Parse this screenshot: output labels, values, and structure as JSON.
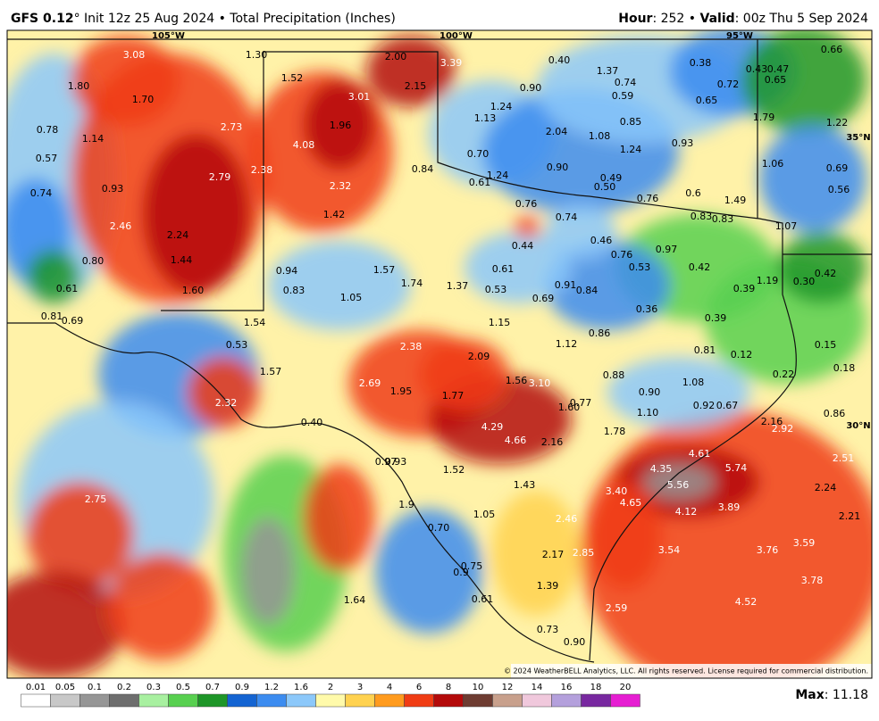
{
  "header": {
    "model": "GFS 0.12",
    "title": "° Init 12z 25 Aug 2024 • Total Precipitation (Inches)",
    "hour_label": "Hour",
    "hour": ": 252 • ",
    "valid_label": "Valid",
    "valid": ": 00z Thu 5 Sep 2024"
  },
  "axis_labels": [
    "105°W",
    "100°W",
    "95°W",
    "35°N",
    "30°N"
  ],
  "map_labels": [
    "3.08",
    "1.30",
    "1.80",
    "1.70",
    "1.52",
    "2.00",
    "3.39",
    "2.15",
    "3.01",
    "1.96",
    "0.78",
    "1.14",
    "2.73",
    "4.08",
    "0.57",
    "2.38",
    "2.79",
    "0.74",
    "0.93",
    "2.32",
    "1.42",
    "2.46",
    "2.24",
    "0.80",
    "1.44",
    "0.61",
    "1.60",
    "0.94",
    "0.83",
    "1.57",
    "1.74",
    "1.37",
    "1.05",
    "0.81",
    "0.69",
    "1.54",
    "0.53",
    "2.38",
    "1.57",
    "2.69",
    "1.95",
    "1.77",
    "2.09",
    "2.32",
    "1.56",
    "3.10",
    "0.40",
    "4.29",
    "4.66",
    "2.16",
    "1.60",
    "0.77",
    "0.97",
    "0.93",
    "1.52",
    "1.43",
    "2.75",
    "1.9",
    "1.05",
    "0.70",
    "2.46",
    "2.17",
    "2.85",
    "0.75",
    "0.9",
    "1.64",
    "0.61",
    "1.39",
    "0.73",
    "0.90",
    "2.59",
    "0.40",
    "1.37",
    "0.74",
    "0.59",
    "0.38",
    "0.72",
    "0.43",
    "0.47",
    "0.65",
    "0.66",
    "0.90",
    "1.24",
    "1.13",
    "0.65",
    "0.85",
    "2.04",
    "1.08",
    "1.79",
    "1.22",
    "0.93",
    "1.24",
    "0.70",
    "0.84",
    "0.90",
    "1.24",
    "0.61",
    "0.49",
    "0.50",
    "1.06",
    "0.69",
    "0.56",
    "0.76",
    "0.6",
    "1.49",
    "0.76",
    "0.74",
    "0.83",
    "0.83",
    "1.07",
    "0.44",
    "0.46",
    "0.97",
    "0.76",
    "0.53",
    "0.42",
    "0.61",
    "0.42",
    "1.19",
    "0.30",
    "0.91",
    "0.84",
    "0.53",
    "0.39",
    "0.69",
    "0.36",
    "1.15",
    "0.39",
    "0.86",
    "1.12",
    "0.15",
    "0.81",
    "0.12",
    "0.88",
    "0.22",
    "0.18",
    "1.08",
    "0.90",
    "0.92",
    "0.67",
    "1.10",
    "2.16",
    "2.92",
    "0.86",
    "1.78",
    "4.61",
    "5.74",
    "2.51",
    "4.35",
    "5.56",
    "2.24",
    "3.40",
    "4.65",
    "4.12",
    "3.89",
    "2.21",
    "3.54",
    "3.76",
    "3.59",
    "3.78",
    "4.52"
  ],
  "copyright": "© 2024 WeatherBELL Analytics, LLC. All rights reserved. License required for commercial distribution.",
  "colorbar": {
    "labels": [
      "0.01",
      "0.05",
      "0.1",
      "0.2",
      "0.3",
      "0.5",
      "0.7",
      "0.9",
      "1.2",
      "1.6",
      "2",
      "3",
      "4",
      "6",
      "8",
      "10",
      "12",
      "14",
      "16",
      "18",
      "20"
    ],
    "colors": [
      "#ffffff",
      "#c8c8c8",
      "#969696",
      "#6e6e6e",
      "#a8f0a0",
      "#58d050",
      "#1e9628",
      "#1464d2",
      "#3c8cf0",
      "#8cc8fa",
      "#fffaaa",
      "#ffd250",
      "#ff9b1e",
      "#f03c14",
      "#b40a0a",
      "#6e3c32",
      "#c8a08c",
      "#f0c8dc",
      "#b4a0dc",
      "#7828a0",
      "#e61ed2"
    ]
  },
  "max_label": "Max",
  "max_value": ": 11.18"
}
